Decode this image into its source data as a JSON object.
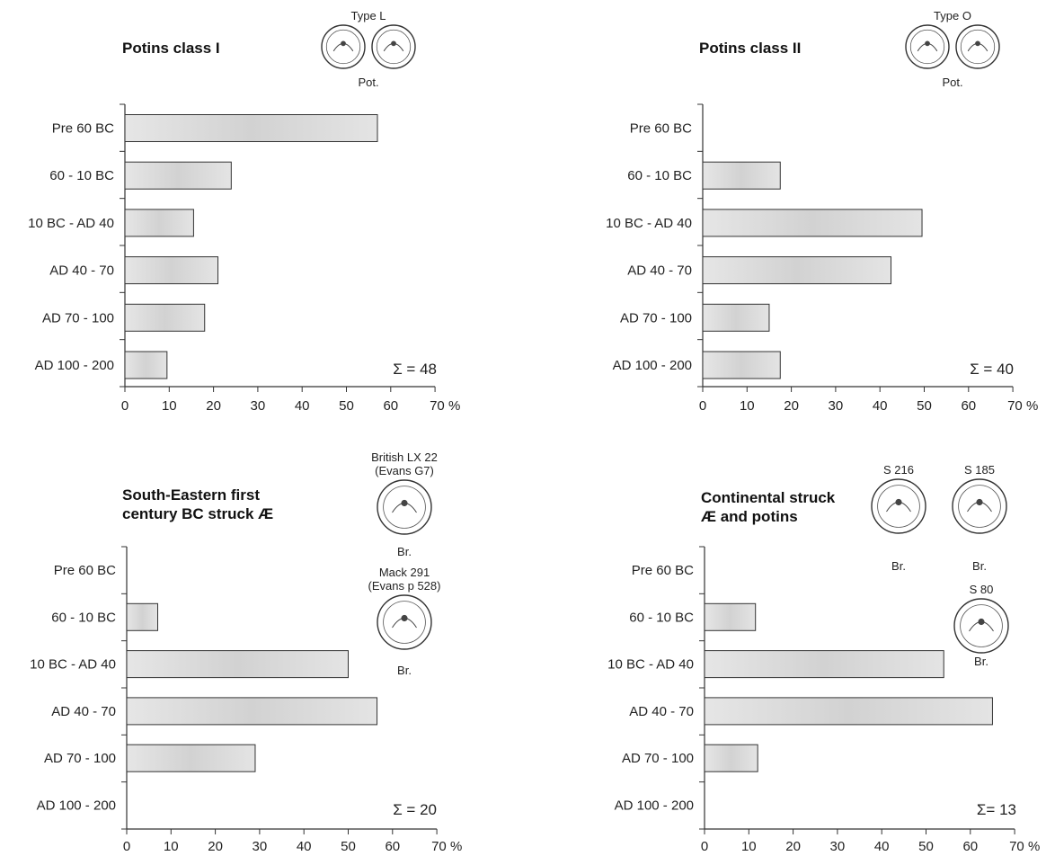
{
  "chart_data": [
    {
      "type": "bar",
      "title": "Potins class I",
      "categories": [
        "Pre 60 BC",
        "60 - 10 BC",
        "10 BC - AD 40",
        "AD 40 - 70",
        "AD 70 - 100",
        "AD 100 - 200"
      ],
      "values": [
        57,
        24,
        15.5,
        21,
        18,
        9.5
      ],
      "xlim": [
        0,
        70
      ],
      "xticks": [
        "0",
        "10",
        "20",
        "30",
        "40",
        "50",
        "60",
        "70 %"
      ],
      "annotation": "Σ = 48",
      "coins": [
        {
          "caption": [
            "Type L"
          ],
          "icon": "potin-coin-type-l-icon"
        },
        {
          "caption": [
            "Pot."
          ],
          "icon": ""
        }
      ]
    },
    {
      "type": "bar",
      "title": "Potins class II",
      "categories": [
        "Pre 60 BC",
        "60 - 10 BC",
        "10 BC - AD 40",
        "AD 40 - 70",
        "AD 70 - 100",
        "AD 100 - 200"
      ],
      "values": [
        0,
        17.5,
        49.5,
        42.5,
        15,
        17.5
      ],
      "xlim": [
        0,
        70
      ],
      "xticks": [
        "0",
        "10",
        "20",
        "30",
        "40",
        "50",
        "60",
        "70 %"
      ],
      "annotation": "Σ = 40",
      "coins": [
        {
          "caption": [
            "Type O"
          ],
          "icon": "potin-coin-type-o-icon"
        },
        {
          "caption": [
            "Pot."
          ],
          "icon": ""
        }
      ]
    },
    {
      "type": "bar",
      "title": "South-Eastern first century BC struck Æ",
      "title_lines": [
        "South-Eastern first",
        "century BC struck Æ"
      ],
      "categories": [
        "Pre 60 BC",
        "60 - 10 BC",
        "10 BC - AD 40",
        "AD 40 - 70",
        "AD 70 - 100",
        "AD 100 - 200"
      ],
      "values": [
        0,
        7,
        50,
        56.5,
        29,
        0
      ],
      "xlim": [
        0,
        70
      ],
      "xticks": [
        "0",
        "10",
        "20",
        "30",
        "40",
        "50",
        "60",
        "70 %"
      ],
      "annotation": "Σ = 20",
      "coins": [
        {
          "caption": [
            "British LX 22",
            "(Evans G7)"
          ],
          "icon": "british-coin-lx22-icon"
        },
        {
          "caption": [
            "Br."
          ],
          "icon": ""
        },
        {
          "caption": [
            "Mack 291",
            "(Evans p 528)"
          ],
          "icon": "mack-291-coin-icon"
        },
        {
          "caption": [
            "Br."
          ],
          "icon": ""
        }
      ]
    },
    {
      "type": "bar",
      "title": "Continental struck Æ and potins",
      "title_lines": [
        "Continental struck",
        "Æ and potins"
      ],
      "categories": [
        "Pre 60 BC",
        "60 - 10 BC",
        "10 BC - AD 40",
        "AD 40 - 70",
        "AD 70 - 100",
        "AD 100 - 200"
      ],
      "values": [
        0,
        11.5,
        54,
        65,
        12,
        0
      ],
      "xlim": [
        0,
        70
      ],
      "xticks": [
        "0",
        "10",
        "20",
        "30",
        "40",
        "50",
        "60",
        "70 %"
      ],
      "annotation": "Σ= 13",
      "coins": [
        {
          "caption": [
            "S 216"
          ],
          "icon": "coin-s216-icon"
        },
        {
          "caption": [
            "Br."
          ],
          "icon": ""
        },
        {
          "caption": [
            "S 185"
          ],
          "icon": "coin-s185-icon"
        },
        {
          "caption": [
            "Br."
          ],
          "icon": ""
        },
        {
          "caption": [
            "S 80"
          ],
          "icon": "coin-s80-icon"
        },
        {
          "caption": [
            "Br."
          ],
          "icon": ""
        }
      ]
    }
  ],
  "style": {
    "bar_fill": "#dcdcdc",
    "bar_stroke": "#333333",
    "axis_color": "#333333",
    "text_color": "#222222"
  }
}
